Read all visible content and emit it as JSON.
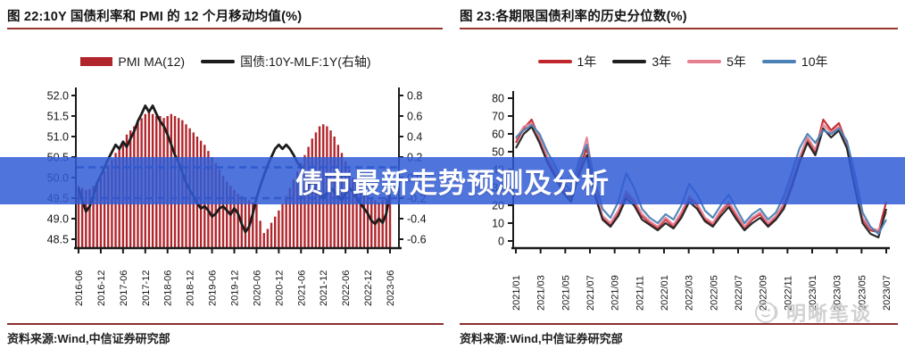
{
  "banner": {
    "text": "债市最新走势预测及分析",
    "bg_color": "#305cd6"
  },
  "watermark": {
    "text": "明晰笔谈",
    "icon": "smiley-face-logo",
    "color": "#c9c9c9"
  },
  "accent_colors": {
    "title_rule": "#96362e",
    "source_rule": "#8b2f2f",
    "axis": "#1a1a1a"
  },
  "chart_data": [
    {
      "type": "bar",
      "title": "图 22:10Y 国债利率和 PMI 的 12 个月移动均值(%)",
      "source": "资料来源:Wind,中信证券研究部",
      "legend_position": "top",
      "x_ticks": [
        "2016-06",
        "2016-12",
        "2017-06",
        "2017-12",
        "2018-06",
        "2018-12",
        "2019-06",
        "2019-12",
        "2020-06",
        "2020-12",
        "2021-06",
        "2021-12",
        "2022-06",
        "2022-12",
        "2023-06"
      ],
      "y_left": {
        "min": 48.5,
        "max": 52.0,
        "tick_labels": [
          "52.0",
          "51.5",
          "51.0",
          "50.5",
          "50.0",
          "49.5",
          "49.0",
          "48.5"
        ]
      },
      "y_right": {
        "min": -0.6,
        "max": 0.8,
        "tick_labels": [
          "0.8",
          "0.6",
          "0.4",
          "0.2",
          "0.0",
          "-0.2",
          "-0.4",
          "-0.6"
        ]
      },
      "ref_lines": [
        {
          "axis": "left",
          "value": 50.25,
          "color": "#2b55b0",
          "style": "dashed"
        },
        {
          "axis": "right",
          "value": -0.2,
          "color": "#53489b",
          "style": "dashed"
        }
      ],
      "series": [
        {
          "name": "PMI MA(12)",
          "swatch": "bar",
          "axis": "left",
          "color": "#b1262c",
          "values": [
            49.8,
            49.75,
            49.7,
            49.72,
            49.8,
            49.9,
            50.0,
            50.15,
            50.3,
            50.45,
            50.6,
            50.75,
            50.9,
            51.05,
            51.15,
            51.25,
            51.35,
            51.45,
            51.55,
            51.6,
            51.55,
            51.5,
            51.5,
            51.45,
            51.5,
            51.55,
            51.5,
            51.45,
            51.4,
            51.3,
            51.2,
            51.1,
            51.0,
            50.9,
            50.8,
            50.65,
            50.5,
            50.35,
            50.2,
            50.05,
            49.9,
            49.8,
            49.7,
            49.6,
            49.55,
            49.5,
            49.45,
            49.4,
            49.35,
            48.95,
            48.65,
            48.75,
            48.9,
            49.05,
            49.2,
            49.35,
            49.55,
            49.75,
            49.95,
            50.15,
            50.35,
            50.55,
            50.75,
            50.95,
            51.1,
            51.25,
            51.3,
            51.25,
            51.15,
            51.0,
            50.8,
            50.6,
            50.4,
            50.2,
            50.0,
            49.85,
            49.7,
            49.6,
            49.55,
            49.5,
            49.45,
            49.4,
            49.45,
            49.5,
            49.55
          ]
        },
        {
          "name": "国债:10Y-MLF:1Y(右轴)",
          "swatch": "line",
          "axis": "right",
          "color": "#1c1c1c",
          "values": [
            -0.1,
            -0.22,
            -0.33,
            -0.28,
            -0.18,
            -0.05,
            0.02,
            0.1,
            0.18,
            0.25,
            0.32,
            0.28,
            0.35,
            0.3,
            0.38,
            0.45,
            0.55,
            0.62,
            0.7,
            0.64,
            0.7,
            0.62,
            0.55,
            0.5,
            0.42,
            0.32,
            0.22,
            0.15,
            0.05,
            -0.05,
            -0.12,
            -0.18,
            -0.25,
            -0.3,
            -0.28,
            -0.32,
            -0.38,
            -0.35,
            -0.3,
            -0.28,
            -0.32,
            -0.36,
            -0.3,
            -0.35,
            -0.45,
            -0.53,
            -0.48,
            -0.35,
            -0.2,
            -0.08,
            0.02,
            0.12,
            0.2,
            0.28,
            0.32,
            0.28,
            0.32,
            0.28,
            0.22,
            0.15,
            0.1,
            0.05,
            -0.02,
            -0.08,
            -0.12,
            -0.16,
            -0.2,
            -0.15,
            -0.1,
            -0.14,
            -0.18,
            -0.22,
            -0.15,
            -0.1,
            -0.14,
            -0.2,
            -0.25,
            -0.3,
            -0.35,
            -0.42,
            -0.45,
            -0.4,
            -0.44,
            -0.35,
            -0.15
          ]
        }
      ]
    },
    {
      "type": "line",
      "title": "图 23:各期限国债利率的历史分位数(%)",
      "source": "资料来源:Wind,中信证券研究部",
      "legend_position": "top",
      "x_ticks": [
        "2021/01",
        "2021/03",
        "2021/05",
        "2021/07",
        "2021/09",
        "2021/11",
        "2022/01",
        "2022/03",
        "2022/05",
        "2022/07",
        "2022/09",
        "2022/11",
        "2023/01",
        "2023/03",
        "2023/05",
        "2023/07"
      ],
      "y": {
        "min": 0,
        "max": 80,
        "tick_labels": [
          "80",
          "70",
          "60",
          "50",
          "40",
          "30",
          "20",
          "10",
          "0"
        ]
      },
      "series": [
        {
          "name": "1年",
          "swatch": "line",
          "color": "#c0272d",
          "values": [
            55,
            63,
            68,
            57,
            46,
            38,
            29,
            24,
            40,
            52,
            28,
            13,
            9,
            16,
            26,
            22,
            14,
            10,
            7,
            12,
            8,
            15,
            24,
            20,
            12,
            9,
            16,
            21,
            14,
            7,
            12,
            15,
            9,
            13,
            20,
            33,
            46,
            57,
            50,
            68,
            62,
            66,
            54,
            33,
            12,
            6,
            5,
            22
          ]
        },
        {
          "name": "3年",
          "swatch": "line",
          "color": "#1f1f1f",
          "values": [
            52,
            60,
            64,
            55,
            44,
            36,
            27,
            22,
            37,
            48,
            26,
            12,
            8,
            14,
            24,
            20,
            12,
            9,
            6,
            10,
            7,
            13,
            22,
            18,
            11,
            8,
            14,
            19,
            12,
            6,
            10,
            13,
            8,
            12,
            18,
            30,
            44,
            55,
            48,
            63,
            58,
            62,
            52,
            30,
            10,
            4,
            2,
            18
          ]
        },
        {
          "name": "5年",
          "swatch": "line",
          "color": "#e58091",
          "values": [
            57,
            64,
            66,
            58,
            47,
            39,
            30,
            26,
            42,
            58,
            30,
            14,
            10,
            17,
            28,
            23,
            15,
            11,
            8,
            13,
            9,
            16,
            25,
            21,
            13,
            10,
            17,
            22,
            15,
            8,
            13,
            16,
            10,
            14,
            21,
            34,
            47,
            58,
            51,
            65,
            61,
            64,
            53,
            34,
            13,
            7,
            6,
            16
          ]
        },
        {
          "name": "10年",
          "swatch": "line",
          "color": "#4c82b6",
          "values": [
            58,
            62,
            65,
            60,
            50,
            42,
            33,
            28,
            45,
            54,
            34,
            18,
            13,
            22,
            38,
            30,
            18,
            13,
            10,
            15,
            12,
            20,
            32,
            26,
            17,
            13,
            20,
            26,
            18,
            10,
            15,
            18,
            12,
            16,
            25,
            38,
            52,
            60,
            55,
            62,
            60,
            63,
            56,
            38,
            16,
            8,
            4,
            12
          ]
        }
      ]
    }
  ]
}
